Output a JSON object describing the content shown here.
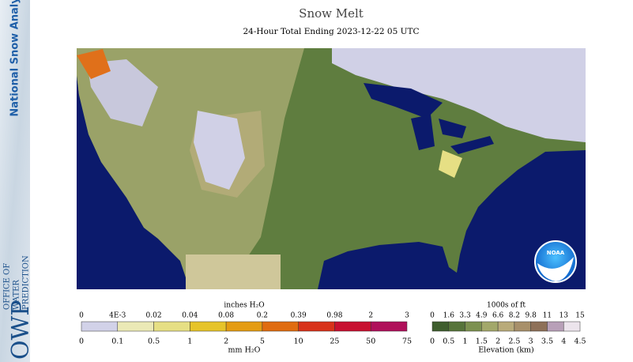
{
  "banner": {
    "product": "National Snow Analysis",
    "org_short": "OWP",
    "org_long": [
      "OFFICE OF",
      "WATER",
      "PREDICTION"
    ]
  },
  "header": {
    "title": "Snow Melt",
    "subtitle": "24-Hour Total Ending 2023-12-22 05 UTC"
  },
  "logo": {
    "text": "NOAA"
  },
  "legends": [
    {
      "top_title": "inches H₂O",
      "top_labels": [
        "0",
        "4E-3",
        "0.02",
        "0.04",
        "0.08",
        "0.2",
        "0.39",
        "0.98",
        "2",
        "3"
      ],
      "bottom_labels": [
        "0",
        "0.1",
        "0.5",
        "1",
        "2",
        "5",
        "10",
        "25",
        "50",
        "75"
      ],
      "bottom_title": "mm H₂O",
      "colors": [
        "#d2d2e8",
        "#ebe9b6",
        "#e6df84",
        "#e6c42a",
        "#e49c12",
        "#e06c10",
        "#d8321a",
        "#c81030",
        "#b0105a"
      ]
    },
    {
      "top_title": "1000s of ft",
      "top_labels": [
        "0",
        "1.6",
        "3.3",
        "4.9",
        "6.6",
        "8.2",
        "9.8",
        "11",
        "13",
        "15"
      ],
      "bottom_labels": [
        "0",
        "0.5",
        "1",
        "1.5",
        "2",
        "2.5",
        "3",
        "3.5",
        "4",
        "4.5"
      ],
      "bottom_title": "Elevation (km)",
      "colors": [
        "#3f5e2e",
        "#56743a",
        "#7c9150",
        "#a3a86a",
        "#b9ab7a",
        "#a8906a",
        "#8e7058",
        "#b8a0b8",
        "#ece4ec"
      ]
    }
  ]
}
